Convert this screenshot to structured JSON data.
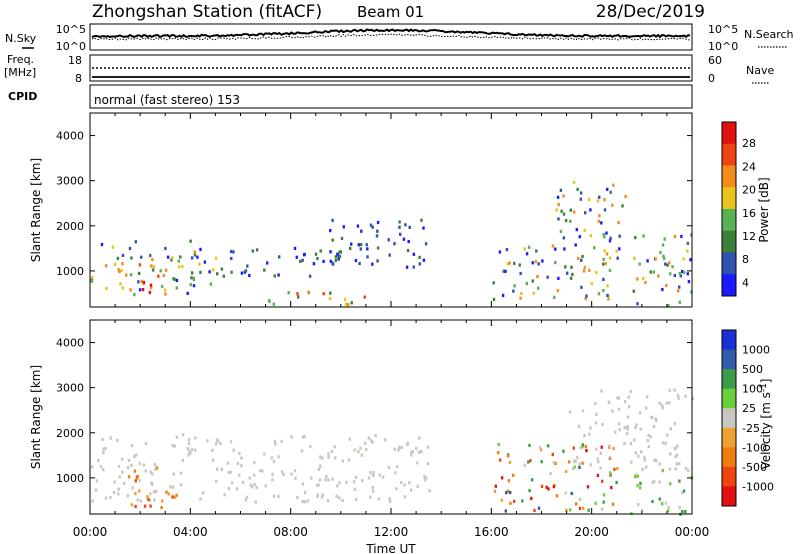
{
  "header": {
    "station": "Zhongshan Station (fitACF)",
    "beam": "Beam 01",
    "date": "28/Dec/2019"
  },
  "strips": {
    "nsky": {
      "label": "N.Sky",
      "ticks": [
        "10^5",
        "10^0"
      ]
    },
    "nsearch": {
      "label": "N.Search",
      "ticks": [
        "10^5",
        "10^0"
      ]
    },
    "freq": {
      "label_line1": "Freq.",
      "label_line2": "[MHz]",
      "ticks": [
        "18",
        "8"
      ]
    },
    "nave": {
      "label": "Nave",
      "ticks": [
        "60",
        "0"
      ]
    },
    "cpid": {
      "label": "CPID",
      "value": "normal (fast stereo) 153"
    }
  },
  "colors": {
    "power": [
      "#1a1aff",
      "#2f52b0",
      "#3b7f3b",
      "#55b255",
      "#e6c51c",
      "#f28c1a",
      "#ee4411",
      "#e31010"
    ],
    "velocity": [
      "#e31010",
      "#f04411",
      "#f07c10",
      "#f0a030",
      "#c8c8c0",
      "#6ad03a",
      "#3c9c4c",
      "#2f5ca8",
      "#1a2fd6"
    ]
  },
  "chart_data": [
    {
      "type": "heatmap",
      "title": "",
      "xlabel": "Time UT",
      "ylabel": "Slant Range [km]",
      "x_ticks": [
        "00:00",
        "04:00",
        "08:00",
        "12:00",
        "16:00",
        "20:00",
        "00:00"
      ],
      "xlim_hours": [
        0,
        24
      ],
      "ylim": [
        200,
        4500
      ],
      "y_ticks": [
        1000,
        2000,
        3000,
        4000
      ],
      "colorbar": {
        "label": "Power [dB]",
        "ticks": [
          "28",
          "24",
          "20",
          "16",
          "12",
          "8",
          "4"
        ],
        "range": [
          0,
          30
        ]
      },
      "echo_regions": [
        {
          "t0": 0.0,
          "t1": 5.0,
          "r0": 500,
          "r1": 1700,
          "level": "mixed"
        },
        {
          "t0": 1.5,
          "t1": 3.0,
          "r0": 500,
          "r1": 1200,
          "level": "high"
        },
        {
          "t0": 5.0,
          "t1": 10.0,
          "r0": 900,
          "r1": 1600,
          "level": "low"
        },
        {
          "t0": 9.5,
          "t1": 13.5,
          "r0": 1100,
          "r1": 2200,
          "level": "low"
        },
        {
          "t0": 7.0,
          "t1": 11.0,
          "r0": 250,
          "r1": 600,
          "level": "mid"
        },
        {
          "t0": 16.0,
          "t1": 21.0,
          "r0": 400,
          "r1": 1600,
          "level": "mixed"
        },
        {
          "t0": 18.5,
          "t1": 21.5,
          "r0": 1500,
          "r1": 3000,
          "level": "mixed"
        },
        {
          "t0": 21.5,
          "t1": 24.0,
          "r0": 250,
          "r1": 1900,
          "level": "mixed"
        }
      ]
    },
    {
      "type": "heatmap",
      "title": "",
      "xlabel": "Time UT",
      "ylabel": "Slant Range [km]",
      "x_ticks": [
        "00:00",
        "04:00",
        "08:00",
        "12:00",
        "16:00",
        "20:00",
        "00:00"
      ],
      "xlim_hours": [
        0,
        24
      ],
      "ylim": [
        200,
        4500
      ],
      "y_ticks": [
        1000,
        2000,
        3000,
        4000
      ],
      "colorbar": {
        "label": "Velocity [m s",
        "label_superscript": "-1",
        "label_close": "]",
        "ticks": [
          "1000",
          "500",
          "100",
          "25",
          "-25",
          "-100",
          "-500",
          "-1000"
        ]
      },
      "echo_regions": [
        {
          "t0": 0.0,
          "t1": 13.5,
          "r0": 500,
          "r1": 2000,
          "level": "low-velocity"
        },
        {
          "t0": 1.5,
          "t1": 3.5,
          "r0": 300,
          "r1": 1300,
          "level": "negative"
        },
        {
          "t0": 16.0,
          "t1": 21.0,
          "r0": 300,
          "r1": 1800,
          "level": "mixed"
        },
        {
          "t0": 19.0,
          "t1": 24.0,
          "r0": 1200,
          "r1": 3000,
          "level": "low-velocity"
        },
        {
          "t0": 21.5,
          "t1": 24.0,
          "r0": 200,
          "r1": 1200,
          "level": "positive"
        }
      ]
    }
  ]
}
